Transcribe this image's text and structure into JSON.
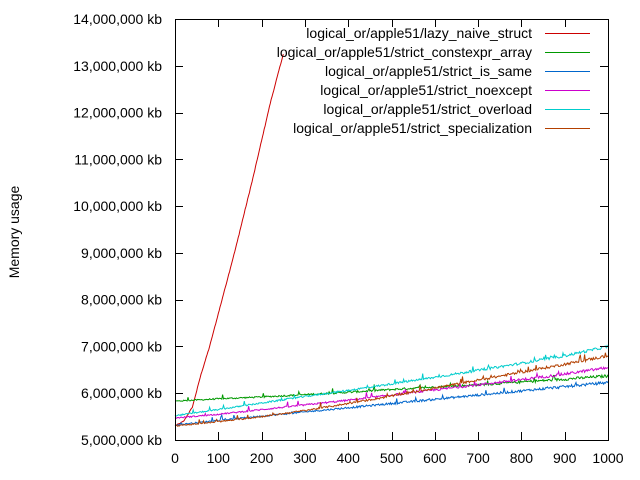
{
  "chart_data": {
    "type": "line",
    "title": "",
    "xlabel": "",
    "ylabel": "Memory usage",
    "xlim": [
      0,
      1000
    ],
    "ylim": [
      5000000,
      14000000
    ],
    "xticks": [
      0,
      100,
      200,
      300,
      400,
      500,
      600,
      700,
      800,
      900,
      1000
    ],
    "yticks": [
      5000000,
      6000000,
      7000000,
      8000000,
      9000000,
      10000000,
      11000000,
      12000000,
      13000000,
      14000000
    ],
    "ytick_labels": [
      "5,000,000 kb",
      "6,000,000 kb",
      "7,000,000 kb",
      "8,000,000 kb",
      "9,000,000 kb",
      "10,000,000 kb",
      "11,000,000 kb",
      "12,000,000 kb",
      "13,000,000 kb",
      "14,000,000 kb"
    ],
    "grid": false,
    "legend_position": "top-right",
    "series": [
      {
        "name": "logical_or/apple51/lazy_naive_struct",
        "color": "#cc0000",
        "x": [
          0,
          20,
          40,
          60,
          80,
          100,
          120,
          140,
          160,
          180,
          200,
          220,
          240,
          250
        ],
        "y": [
          5300000,
          5400000,
          5700000,
          6400000,
          7000000,
          7700000,
          8400000,
          9100000,
          9850000,
          10600000,
          11400000,
          12200000,
          12900000,
          13250000
        ]
      },
      {
        "name": "logical_or/apple51/strict_constexpr_array",
        "color": "#009900",
        "x": [
          0,
          100,
          200,
          300,
          400,
          500,
          600,
          700,
          800,
          900,
          1000
        ],
        "y": [
          5830000,
          5880000,
          5920000,
          5970000,
          6020000,
          6080000,
          6130000,
          6180000,
          6240000,
          6300000,
          6370000
        ]
      },
      {
        "name": "logical_or/apple51/strict_is_same",
        "color": "#0066cc",
        "x": [
          0,
          100,
          200,
          300,
          400,
          500,
          600,
          700,
          800,
          900,
          1000
        ],
        "y": [
          5320000,
          5420000,
          5510000,
          5600000,
          5690000,
          5780000,
          5870000,
          5960000,
          6050000,
          6140000,
          6230000
        ]
      },
      {
        "name": "logical_or/apple51/strict_noexcept",
        "color": "#cc00cc",
        "x": [
          0,
          100,
          200,
          300,
          400,
          500,
          600,
          700,
          800,
          900,
          1000
        ],
        "y": [
          5470000,
          5550000,
          5650000,
          5750000,
          5850000,
          5960000,
          6070000,
          6180000,
          6290000,
          6410000,
          6550000
        ]
      },
      {
        "name": "logical_or/apple51/strict_overload",
        "color": "#00cccc",
        "x": [
          0,
          100,
          200,
          300,
          400,
          500,
          600,
          700,
          800,
          900,
          1000
        ],
        "y": [
          5520000,
          5650000,
          5790000,
          5930000,
          6060000,
          6200000,
          6340000,
          6490000,
          6640000,
          6800000,
          7000000
        ]
      },
      {
        "name": "logical_or/apple51/strict_specialization",
        "color": "#b34000",
        "x": [
          0,
          100,
          200,
          300,
          400,
          500,
          600,
          700,
          800,
          900,
          1000
        ],
        "y": [
          5300000,
          5390000,
          5500000,
          5630000,
          5780000,
          5940000,
          6110000,
          6280000,
          6450000,
          6620000,
          6800000
        ]
      }
    ]
  }
}
